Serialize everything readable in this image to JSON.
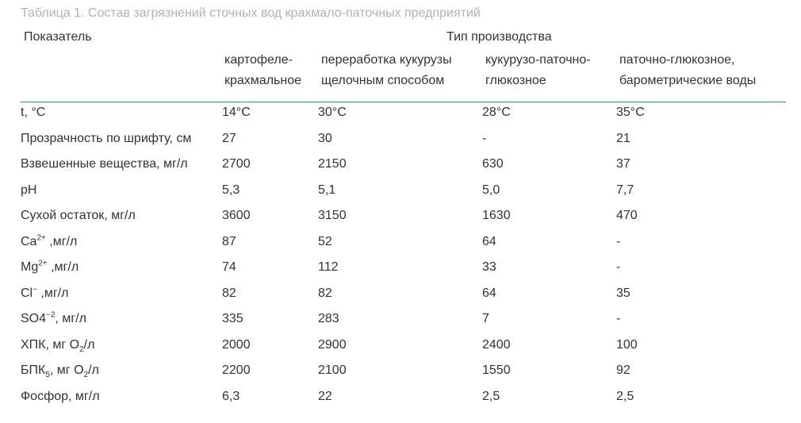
{
  "caption": "Таблица 1. Состав загрязнений сточных вод крахмало-паточных предприятий",
  "header": {
    "indicator": "Показатель",
    "production_type": "Тип производства",
    "columns": [
      {
        "line1": "картофеле-",
        "line2": "крахмальное"
      },
      {
        "line1": "переработка кукурузы",
        "line2": "щелочным способом"
      },
      {
        "line1": "кукурузо-паточно-",
        "line2": "глюкозное"
      },
      {
        "line1": "паточно-глюкозное,",
        "line2": "барометрические воды"
      }
    ]
  },
  "rows": [
    {
      "label": "t, °C",
      "values": [
        "14°C",
        "30°C",
        "28°C",
        "35°C"
      ]
    },
    {
      "label": "Прозрачность по шрифту, см",
      "values": [
        "27",
        "30",
        "-",
        "21"
      ]
    },
    {
      "label": "Взвешенные вещества, мг/л",
      "values": [
        "2700",
        "2150",
        "630",
        "37"
      ]
    },
    {
      "label": "pH",
      "values": [
        "5,3",
        "5,1",
        "5,0",
        "7,7"
      ]
    },
    {
      "label": "Сухой остаток, мг/л",
      "values": [
        "3600",
        "3150",
        "1630",
        "470"
      ]
    },
    {
      "label_main": "Ca",
      "label_sup": "2+",
      "label_tail": " ,мг/л",
      "values": [
        "87",
        "52",
        "64",
        "-"
      ]
    },
    {
      "label_main": "Mg",
      "label_sup": "2+",
      "label_tail": " ,мг/л",
      "values": [
        "74",
        "112",
        "33",
        "-"
      ]
    },
    {
      "label_main": "Cl",
      "label_sup": "−",
      "label_tail": " ,мг/л",
      "values": [
        "82",
        "82",
        "64",
        "35"
      ]
    },
    {
      "label_main": "SO4",
      "label_sup": "−2",
      "label_tail": ", мг/л",
      "values": [
        "335",
        "283",
        "7",
        "-"
      ]
    },
    {
      "label_main": "ХПК, мг O",
      "label_sub": "2",
      "label_tail": "/л",
      "values": [
        "2000",
        "2900",
        "2400",
        "100"
      ]
    },
    {
      "label_main": "БПК",
      "label_sub": "5",
      "label_mid": ", мг O",
      "label_sub2": "2",
      "label_tail": "/л",
      "values": [
        "2200",
        "2100",
        "1550",
        "92"
      ]
    },
    {
      "label": "Фосфор, мг/л",
      "values": [
        "6,3",
        "22",
        "2,5",
        "2,5"
      ]
    }
  ]
}
